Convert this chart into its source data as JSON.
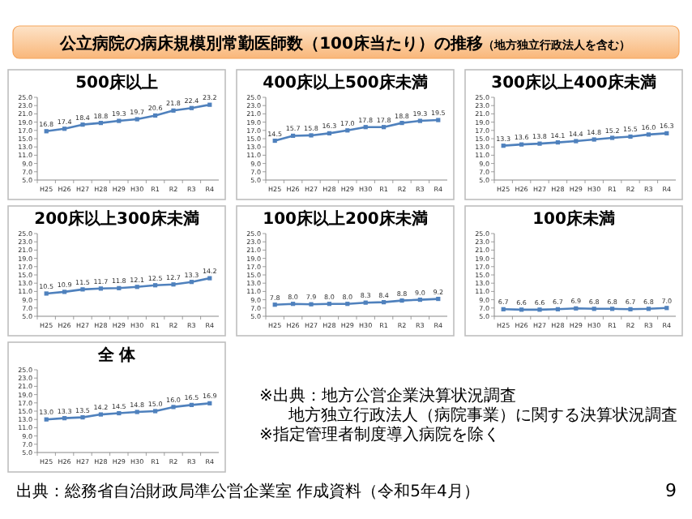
{
  "chart_data": [
    {
      "type": "other",
      "title": "公立病院の病床規模別常勤医師数（100床当たり）の推移",
      "subtitle": "（地方独立行政法人を含む）",
      "annotations": [
        "※出典：地方公営企業決算状況調査",
        "地方独立行政法人（病院事業）に関する決算状況調査",
        "※指定管理者制度導入病院を除く",
        "出典：総務省自治財政局準公営企業室 作成資料（令和5年4月）",
        "9"
      ]
    },
    {
      "type": "line",
      "title": "500床以上",
      "categories": [
        "H25",
        "H26",
        "H27",
        "H28",
        "H29",
        "H30",
        "R1",
        "R2",
        "R3",
        "R4"
      ],
      "series": [
        {
          "color": "#4f81bd",
          "values": [
            16.8,
            17.4,
            18.4,
            18.8,
            19.3,
            19.7,
            20.6,
            21.8,
            22.4,
            23.2
          ]
        }
      ],
      "ylim": [
        5,
        25
      ],
      "yticks": [
        {
          "value": 5,
          "label": "5.0"
        },
        {
          "value": 7,
          "label": "7.0"
        },
        {
          "value": 9,
          "label": "9.0"
        },
        {
          "value": 11,
          "label": "11.0"
        },
        {
          "value": 13,
          "label": "13.0"
        },
        {
          "value": 15,
          "label": "15.0"
        },
        {
          "value": 17,
          "label": "17.0"
        },
        {
          "value": 19,
          "label": "19.0"
        },
        {
          "value": 21,
          "label": "21.0"
        },
        {
          "value": 23,
          "label": "23.0"
        },
        {
          "value": 25,
          "label": "25.0"
        }
      ],
      "data_labels": true,
      "marker": "square"
    },
    {
      "type": "line",
      "title": "400床以上500床未満",
      "categories": [
        "H25",
        "H26",
        "H27",
        "H28",
        "H29",
        "H30",
        "R1",
        "R2",
        "R3",
        "R4"
      ],
      "series": [
        {
          "color": "#4f81bd",
          "values": [
            14.5,
            15.7,
            15.8,
            16.3,
            17.0,
            17.8,
            17.8,
            18.8,
            19.3,
            19.5
          ],
          "value_labels": [
            "14.5",
            "15.7",
            "15.8",
            "16.3",
            "17.0",
            "17.8",
            "17.8",
            "18.8",
            "19.3",
            "19.5"
          ]
        }
      ],
      "ylim": [
        5,
        25
      ],
      "yticks": [
        {
          "value": 5,
          "label": "5.0"
        },
        {
          "value": 7,
          "label": "7.0"
        },
        {
          "value": 9,
          "label": "9.0"
        },
        {
          "value": 11,
          "label": "11.0"
        },
        {
          "value": 13,
          "label": "13.0"
        },
        {
          "value": 15,
          "label": "15.0"
        },
        {
          "value": 17,
          "label": "17.0"
        },
        {
          "value": 19,
          "label": "19.0"
        },
        {
          "value": 21,
          "label": "21.0"
        },
        {
          "value": 23,
          "label": "23.0"
        },
        {
          "value": 25,
          "label": "25.0"
        }
      ],
      "data_labels": true,
      "marker": "square"
    },
    {
      "type": "line",
      "title": "300床以上400床未満",
      "categories": [
        "H25",
        "H26",
        "H27",
        "H28",
        "H29",
        "H30",
        "R1",
        "R2",
        "R3",
        "R4"
      ],
      "series": [
        {
          "color": "#4f81bd",
          "values": [
            13.3,
            13.6,
            13.8,
            14.1,
            14.4,
            14.8,
            15.2,
            15.5,
            16.0,
            16.3
          ],
          "value_labels": [
            "13.3",
            "13.6",
            "13.8",
            "14.1",
            "14.4",
            "14.8",
            "15.2",
            "15.5",
            "16.0",
            "16.3"
          ]
        }
      ],
      "ylim": [
        5,
        25
      ],
      "yticks": [
        {
          "value": 5,
          "label": "5.0"
        },
        {
          "value": 7,
          "label": "7.0"
        },
        {
          "value": 9,
          "label": "9.0"
        },
        {
          "value": 11,
          "label": "11.0"
        },
        {
          "value": 13,
          "label": "13.0"
        },
        {
          "value": 15,
          "label": "15.0"
        },
        {
          "value": 17,
          "label": "17.0"
        },
        {
          "value": 19,
          "label": "19.0"
        },
        {
          "value": 21,
          "label": "21.0"
        },
        {
          "value": 23,
          "label": "23.0"
        },
        {
          "value": 25,
          "label": "25.0"
        }
      ],
      "data_labels": true,
      "marker": "square"
    },
    {
      "type": "line",
      "title": "200床以上300床未満",
      "categories": [
        "H25",
        "H26",
        "H27",
        "H28",
        "H29",
        "H30",
        "R1",
        "R2",
        "R3",
        "R4"
      ],
      "series": [
        {
          "color": "#4f81bd",
          "values": [
            10.5,
            10.9,
            11.5,
            11.7,
            11.8,
            12.1,
            12.5,
            12.7,
            13.3,
            14.2
          ]
        }
      ],
      "ylim": [
        5,
        25
      ],
      "yticks": [
        {
          "value": 5,
          "label": "5.0"
        },
        {
          "value": 7,
          "label": "7.0"
        },
        {
          "value": 9,
          "label": "9.0"
        },
        {
          "value": 11,
          "label": "11.0"
        },
        {
          "value": 13,
          "label": "13.0"
        },
        {
          "value": 15,
          "label": "15.0"
        },
        {
          "value": 17,
          "label": "17.0"
        },
        {
          "value": 19,
          "label": "19.0"
        },
        {
          "value": 21,
          "label": "21.0"
        },
        {
          "value": 23,
          "label": "23.0"
        },
        {
          "value": 25,
          "label": "25.0"
        }
      ],
      "data_labels": true,
      "marker": "square"
    },
    {
      "type": "line",
      "title": "100床以上200床未満",
      "categories": [
        "H25",
        "H26",
        "H27",
        "H28",
        "H29",
        "H30",
        "R1",
        "R2",
        "R3",
        "R4"
      ],
      "series": [
        {
          "color": "#4f81bd",
          "values": [
            7.8,
            8.0,
            7.9,
            8.0,
            8.0,
            8.3,
            8.4,
            8.8,
            9.0,
            9.2
          ],
          "value_labels": [
            "7.8",
            "8.0",
            "7.9",
            "8.0",
            "8.0",
            "8.3",
            "8.4",
            "8.8",
            "9.0",
            "9.2"
          ]
        }
      ],
      "ylim": [
        5,
        25
      ],
      "yticks": [
        {
          "value": 5,
          "label": "5.0"
        },
        {
          "value": 7,
          "label": "7.0"
        },
        {
          "value": 9,
          "label": "9.0"
        },
        {
          "value": 11,
          "label": "11.0"
        },
        {
          "value": 13,
          "label": "13.0"
        },
        {
          "value": 15,
          "label": "15.0"
        },
        {
          "value": 17,
          "label": "17.0"
        },
        {
          "value": 19,
          "label": "19.0"
        },
        {
          "value": 21,
          "label": "21.0"
        },
        {
          "value": 23,
          "label": "23.0"
        },
        {
          "value": 25,
          "label": "25.0"
        }
      ],
      "data_labels": true,
      "marker": "square"
    },
    {
      "type": "line",
      "title": "100床未満",
      "categories": [
        "H25",
        "H26",
        "H27",
        "H28",
        "H29",
        "H30",
        "R1",
        "R2",
        "R3",
        "R4"
      ],
      "series": [
        {
          "color": "#4f81bd",
          "values": [
            6.7,
            6.6,
            6.6,
            6.7,
            6.9,
            6.8,
            6.8,
            6.7,
            6.8,
            7.0
          ],
          "value_labels": [
            "6.7",
            "6.6",
            "6.6",
            "6.7",
            "6.9",
            "6.8",
            "6.8",
            "6.7",
            "6.8",
            "7.0"
          ]
        }
      ],
      "ylim": [
        5,
        25
      ],
      "yticks": [
        {
          "value": 5,
          "label": "5.0"
        },
        {
          "value": 7,
          "label": "7.0"
        },
        {
          "value": 9,
          "label": "9.0"
        },
        {
          "value": 11,
          "label": "11.0"
        },
        {
          "value": 13,
          "label": "13.0"
        },
        {
          "value": 15,
          "label": "15.0"
        },
        {
          "value": 17,
          "label": "17.0"
        },
        {
          "value": 19,
          "label": "19.0"
        },
        {
          "value": 21,
          "label": "21.0"
        },
        {
          "value": 23,
          "label": "23.0"
        },
        {
          "value": 25,
          "label": "25.0"
        }
      ],
      "data_labels": true,
      "marker": "square"
    },
    {
      "type": "line",
      "title": "全 体",
      "categories": [
        "H25",
        "H26",
        "H27",
        "H28",
        "H29",
        "H30",
        "R1",
        "R2",
        "R3",
        "R4"
      ],
      "series": [
        {
          "color": "#4f81bd",
          "values": [
            13.0,
            13.3,
            13.5,
            14.2,
            14.5,
            14.8,
            15.0,
            16.0,
            16.5,
            16.9
          ],
          "value_labels": [
            "13.0",
            "13.3",
            "13.5",
            "14.2",
            "14.5",
            "14.8",
            "15.0",
            "16.0",
            "16.5",
            "16.9"
          ]
        }
      ],
      "ylim": [
        5,
        25
      ],
      "yticks": [
        {
          "value": 5,
          "label": "5.0"
        },
        {
          "value": 7,
          "label": "7.0"
        },
        {
          "value": 9,
          "label": "9.0"
        },
        {
          "value": 11,
          "label": "11.0"
        },
        {
          "value": 13,
          "label": "13.0"
        },
        {
          "value": 15,
          "label": "15.0"
        },
        {
          "value": 17,
          "label": "17.0"
        },
        {
          "value": 19,
          "label": "19.0"
        },
        {
          "value": 21,
          "label": "21.0"
        },
        {
          "value": 23,
          "label": "23.0"
        },
        {
          "value": 25,
          "label": "25.0"
        }
      ],
      "data_labels": true,
      "marker": "square"
    }
  ]
}
